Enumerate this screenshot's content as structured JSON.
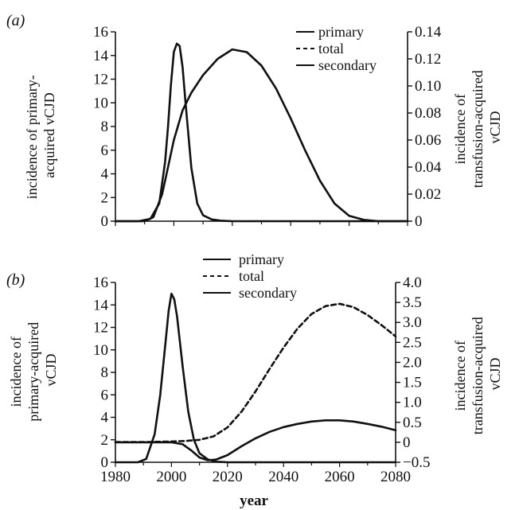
{
  "figure": {
    "background": "#ffffff",
    "ink": "#111111",
    "shared_xlabel": "year"
  },
  "chart_data": [
    {
      "panel_label": "(a)",
      "type": "line",
      "title": "",
      "xlabel": "",
      "ylabel_left": [
        "incidence of primary-",
        "acquired vCJD"
      ],
      "ylabel_right": [
        "incidence of",
        "transfusion-acquired",
        "vCJD"
      ],
      "xlim": [
        1980,
        2080
      ],
      "ylim_left": [
        0,
        16
      ],
      "ylim_right": [
        0,
        0.14
      ],
      "xticks": [],
      "yticks_left": [
        0,
        2,
        4,
        6,
        8,
        10,
        12,
        14,
        16
      ],
      "yticks_right": [
        "0",
        "0.02",
        "0.04",
        "0.06",
        "0.08",
        "0.10",
        "0.12",
        "0.14"
      ],
      "yticks_right_values": [
        0,
        0.02,
        0.04,
        0.06,
        0.08,
        0.1,
        0.12,
        0.14
      ],
      "legend": {
        "position": "top-right",
        "entries": [
          "primary",
          "total",
          "secondary"
        ]
      },
      "series": [
        {
          "name": "primary",
          "axis": "left",
          "x": [
            1980,
            1988,
            1992,
            1995,
            1997,
            1998,
            1999,
            2000,
            2001,
            2002,
            2003,
            2004,
            2006,
            2008,
            2010,
            2013,
            2016,
            2020,
            2025,
            2040,
            2080
          ],
          "y": [
            0,
            0,
            0.2,
            1.5,
            5,
            8,
            11.5,
            14.3,
            15,
            14.8,
            13,
            10,
            4.5,
            1.5,
            0.5,
            0.15,
            0.05,
            0,
            0,
            0,
            0
          ]
        },
        {
          "name": "secondary",
          "axis": "right",
          "x": [
            1980,
            1990,
            1993,
            1996,
            1998,
            2000,
            2003,
            2006,
            2010,
            2015,
            2020,
            2025,
            2030,
            2035,
            2040,
            2045,
            2050,
            2055,
            2060,
            2065,
            2070,
            2080
          ],
          "y": [
            0,
            0,
            0.003,
            0.02,
            0.04,
            0.06,
            0.082,
            0.095,
            0.108,
            0.12,
            0.127,
            0.125,
            0.115,
            0.098,
            0.076,
            0.052,
            0.03,
            0.013,
            0.004,
            0.001,
            0,
            0
          ]
        }
      ]
    },
    {
      "panel_label": "(b)",
      "type": "line",
      "title": "",
      "xlabel": "year",
      "ylabel_left": [
        "incidence of",
        "primary-acquired",
        "vCJD"
      ],
      "ylabel_right": [
        "incidence of",
        "transfusion-acquired",
        "vCJD"
      ],
      "xlim": [
        1980,
        2080
      ],
      "ylim_left": [
        0,
        16
      ],
      "ylim_right": [
        -0.5,
        4.0
      ],
      "xticks": [
        1980,
        2000,
        2020,
        2040,
        2060,
        2080
      ],
      "yticks_left": [
        0,
        2,
        4,
        6,
        8,
        10,
        12,
        14,
        16
      ],
      "yticks_right": [
        "−0.5",
        "0",
        "0.5",
        "1.0",
        "1.5",
        "2.0",
        "2.5",
        "3.0",
        "3.5",
        "4.0"
      ],
      "yticks_right_values": [
        -0.5,
        0,
        0.5,
        1.0,
        1.5,
        2.0,
        2.5,
        3.0,
        3.5,
        4.0
      ],
      "legend": {
        "position": "top-center",
        "entries": [
          "primary",
          "total",
          "secondary"
        ]
      },
      "series": [
        {
          "name": "primary",
          "axis": "left",
          "x": [
            1980,
            1988,
            1991,
            1994,
            1996,
            1998,
            1999,
            2000,
            2001,
            2002,
            2004,
            2006,
            2008,
            2010,
            2013,
            2016,
            2020,
            2030,
            2080
          ],
          "y": [
            0,
            0,
            0.3,
            2.5,
            6,
            11,
            13.5,
            15,
            14.5,
            13,
            8.5,
            4.5,
            2,
            0.8,
            0.25,
            0.05,
            0,
            0,
            0
          ]
        },
        {
          "name": "total",
          "axis": "left",
          "x": [
            1980,
            1990,
            2000,
            2005,
            2010,
            2015,
            2020,
            2025,
            2030,
            2035,
            2040,
            2045,
            2050,
            2055,
            2060,
            2065,
            2070,
            2075,
            2080
          ],
          "y": [
            1.8,
            1.8,
            1.85,
            1.9,
            2.0,
            2.3,
            3.1,
            4.5,
            6.3,
            8.3,
            10.2,
            11.9,
            13.2,
            13.9,
            14.1,
            13.8,
            13.1,
            12.2,
            11.2
          ]
        },
        {
          "name": "secondary",
          "axis": "right",
          "x": [
            1980,
            2000,
            2004,
            2007,
            2010,
            2013,
            2016,
            2020,
            2025,
            2030,
            2035,
            2040,
            2045,
            2050,
            2055,
            2060,
            2065,
            2070,
            2075,
            2080
          ],
          "y": [
            0,
            0,
            -0.05,
            -0.2,
            -0.38,
            -0.45,
            -0.43,
            -0.32,
            -0.1,
            0.1,
            0.26,
            0.38,
            0.46,
            0.52,
            0.55,
            0.55,
            0.52,
            0.46,
            0.39,
            0.3
          ]
        }
      ]
    }
  ]
}
